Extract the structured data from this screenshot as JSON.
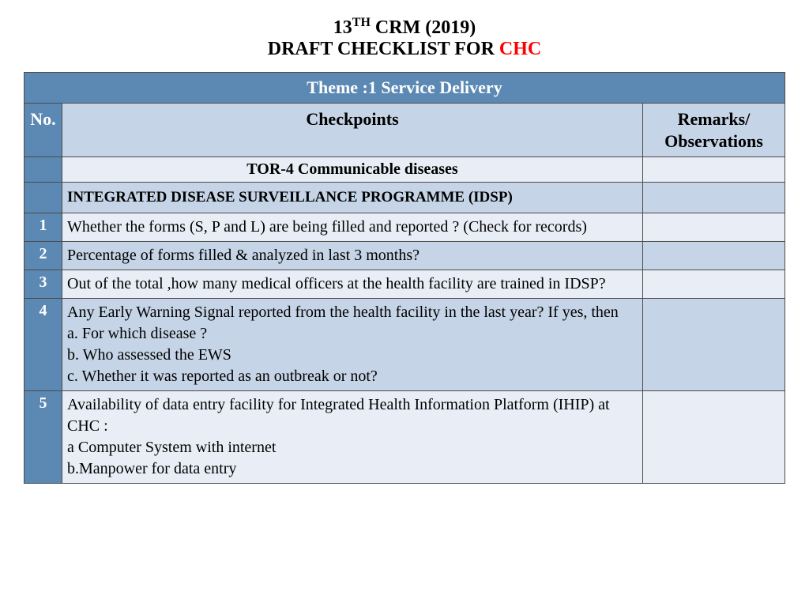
{
  "title": {
    "prefix": "13",
    "super": "TH",
    "rest": " CRM (2019)",
    "line2a": "DRAFT CHECKLIST FOR ",
    "line2b": "CHC"
  },
  "table": {
    "theme": "Theme :1 Service Delivery",
    "headers": {
      "no": "No.",
      "checkpoints": "Checkpoints",
      "remarks": "Remarks/\nObservations"
    },
    "tor": "TOR-4 Communicable diseases",
    "programme": "INTEGRATED DISEASE SURVEILLANCE PROGRAMME (IDSP)",
    "rows": [
      {
        "no": "1",
        "text": "Whether the forms (S, P and L) are being filled and reported ? (Check for records)",
        "shade": "light"
      },
      {
        "no": "2",
        "text": "Percentage of forms filled & analyzed in last 3 months?",
        "shade": "dark"
      },
      {
        "no": "3",
        "text": "Out of the total ,how many medical officers at the health facility are trained in IDSP?",
        "shade": "light"
      },
      {
        "no": "4",
        "text": "Any Early Warning Signal reported from the health facility in the last year? If yes, then\na. For which disease ?\nb. Who assessed the EWS\nc. Whether it was reported as an outbreak or not?",
        "shade": "dark"
      },
      {
        "no": "5",
        "text": "Availability of data entry facility for Integrated Health Information Platform (IHIP) at CHC :\na Computer System with internet\nb.Manpower for data entry",
        "shade": "light"
      }
    ]
  },
  "colors": {
    "header_blue": "#5b89b4",
    "light_row": "#e9eef6",
    "dark_row": "#c5d4e6",
    "border": "#4a4a4a",
    "red": "#ff0000"
  }
}
